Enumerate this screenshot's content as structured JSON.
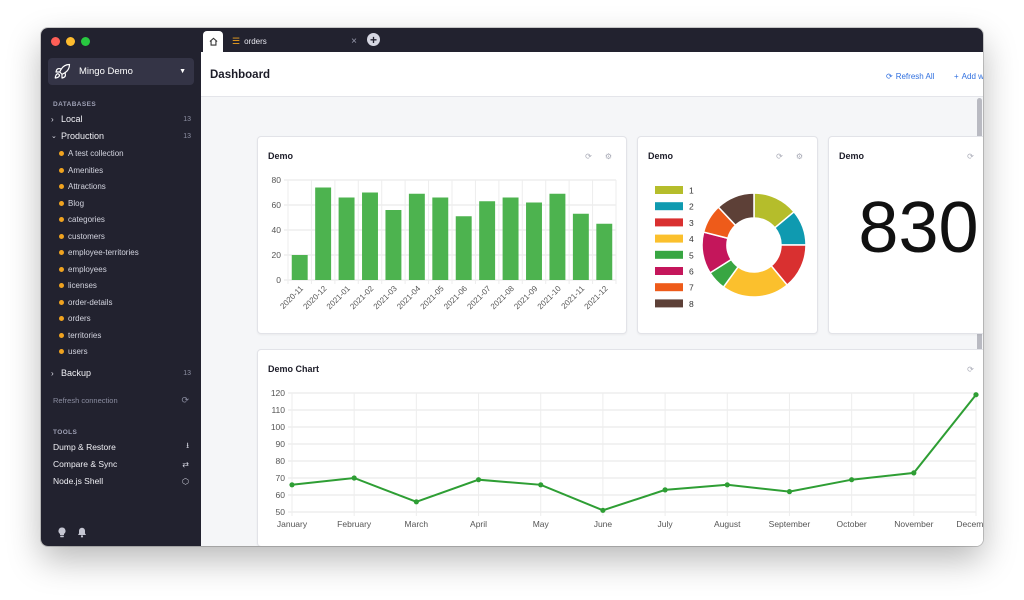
{
  "window": {
    "traffic_colors": [
      "#ff5f57",
      "#febc2e",
      "#28c840"
    ]
  },
  "sidebar": {
    "connection": {
      "name": "Mingo Demo",
      "icon": "rocket-icon"
    },
    "databases_title": "DATABASES",
    "databases": [
      {
        "name": "Local",
        "count": "13",
        "expanded": false
      },
      {
        "name": "Production",
        "count": "13",
        "expanded": true
      },
      {
        "name": "Backup",
        "count": "13",
        "expanded": false
      }
    ],
    "collections": [
      "A test collection",
      "Amenities",
      "Attractions",
      "Blog",
      "categories",
      "customers",
      "employee-territories",
      "employees",
      "licenses",
      "order-details",
      "orders",
      "territories",
      "users"
    ],
    "refresh_connection": "Refresh connection",
    "tools_title": "TOOLS",
    "tools": [
      {
        "label": "Dump & Restore",
        "icon": "download-icon"
      },
      {
        "label": "Compare & Sync",
        "icon": "arrows-swap-icon"
      },
      {
        "label": "Node.js Shell",
        "icon": "nodejs-icon"
      }
    ]
  },
  "tabs": {
    "home_icon": "home-icon",
    "open": [
      {
        "label": "orders",
        "icon": "menu-icon"
      }
    ]
  },
  "dashboard": {
    "title": "Dashboard",
    "refresh_all": "Refresh All",
    "add_widget": "Add widget",
    "widgets": [
      {
        "title": "Demo"
      },
      {
        "title": "Demo"
      },
      {
        "title": "Demo",
        "value": "830"
      },
      {
        "title": "Demo Chart"
      }
    ]
  },
  "chart_data": [
    {
      "type": "bar",
      "title": "Demo",
      "categories": [
        "2020-11",
        "2020-12",
        "2021-01",
        "2021-02",
        "2021-03",
        "2021-04",
        "2021-05",
        "2021-06",
        "2021-07",
        "2021-08",
        "2021-09",
        "2021-10",
        "2021-11",
        "2021-12"
      ],
      "values": [
        20,
        74,
        66,
        70,
        56,
        69,
        66,
        51,
        63,
        66,
        62,
        69,
        53,
        45
      ],
      "ylim": [
        0,
        80
      ],
      "yticks": [
        0,
        20,
        40,
        60,
        80
      ],
      "color": "#4db34f",
      "grid": true
    },
    {
      "type": "pie",
      "title": "Demo",
      "donut": true,
      "categories": [
        "1",
        "2",
        "3",
        "4",
        "5",
        "6",
        "7",
        "8"
      ],
      "values": [
        14,
        11,
        14,
        21,
        6,
        13,
        9,
        12
      ],
      "colors": [
        "#b5bd2b",
        "#0f9ab0",
        "#d93030",
        "#fbc02d",
        "#38a642",
        "#c4165b",
        "#ee5b1a",
        "#5d4037"
      ],
      "legend": "left"
    },
    {
      "type": "line",
      "title": "Demo Chart",
      "categories": [
        "January",
        "February",
        "March",
        "April",
        "May",
        "June",
        "July",
        "August",
        "September",
        "October",
        "November",
        "December"
      ],
      "values": [
        66,
        70,
        56,
        69,
        66,
        51,
        63,
        66,
        62,
        69,
        73,
        119
      ],
      "ylim": [
        50,
        120
      ],
      "yticks": [
        50,
        60,
        70,
        80,
        90,
        100,
        110,
        120
      ],
      "color": "#2e9e34",
      "grid": true
    }
  ]
}
